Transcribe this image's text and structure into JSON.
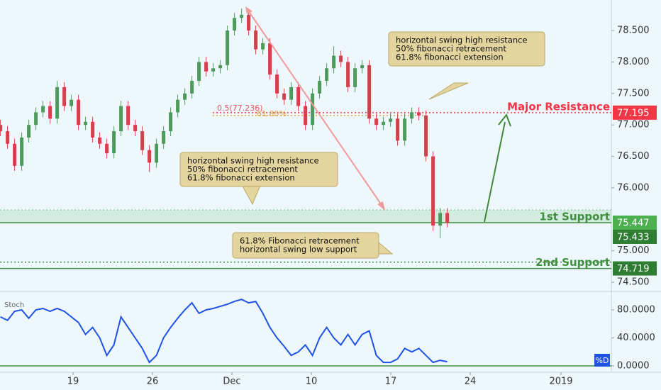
{
  "chart_data": [
    {
      "type": "candlestick",
      "up_color": "#4e9a5c",
      "down_color": "#d2424c",
      "x": [
        0.6,
        1.225,
        1.85,
        2.475,
        3.1,
        3.725,
        4.35,
        4.975,
        5.6,
        6.225,
        6.85,
        7.475,
        8.1,
        8.725,
        9.35,
        9.975,
        10.6,
        11.225,
        11.85,
        12.475,
        13.1,
        13.725,
        14.35,
        14.975,
        15.6,
        16.225,
        16.85,
        17.475,
        18.1,
        18.725,
        19.35,
        19.975,
        20.6,
        21.225,
        21.85,
        22.475,
        23.1,
        23.725,
        24.35,
        24.975,
        25.6,
        26.225,
        26.85,
        27.475,
        28.1,
        28.725,
        29.35,
        29.975,
        30.6,
        31.225,
        31.85,
        32.475,
        33.1,
        33.725,
        34.35,
        34.975,
        35.6,
        36.225,
        36.85,
        37.475,
        38.1,
        38.725,
        39.35,
        39.975
      ],
      "open": [
        77.0,
        76.9,
        76.7,
        76.35,
        76.8,
        77.0,
        77.2,
        77.3,
        77.1,
        77.6,
        77.3,
        77.4,
        77.0,
        77.05,
        76.8,
        76.7,
        76.55,
        76.9,
        77.3,
        77.0,
        76.9,
        76.6,
        76.4,
        76.7,
        76.9,
        77.2,
        77.4,
        77.5,
        77.7,
        78.0,
        77.85,
        77.9,
        77.95,
        78.5,
        78.7,
        78.75,
        78.5,
        78.2,
        78.3,
        77.8,
        77.5,
        77.4,
        77.6,
        77.3,
        77.0,
        77.5,
        77.7,
        77.9,
        78.1,
        78.0,
        77.6,
        77.9,
        77.95,
        77.1,
        77.0,
        77.05,
        77.1,
        76.75,
        77.1,
        77.2,
        77.15,
        76.5,
        75.4,
        75.6
      ],
      "high": [
        77.08,
        76.98,
        76.78,
        76.88,
        77.08,
        77.28,
        77.38,
        77.38,
        77.7,
        77.68,
        77.48,
        77.48,
        77.13,
        77.13,
        76.88,
        76.78,
        76.98,
        77.38,
        77.38,
        77.08,
        76.98,
        76.68,
        76.78,
        76.98,
        77.28,
        77.48,
        77.58,
        77.78,
        78.08,
        78.08,
        77.98,
        78.03,
        78.58,
        78.78,
        78.85,
        78.83,
        78.58,
        78.38,
        78.38,
        77.88,
        77.58,
        77.68,
        77.68,
        77.38,
        77.58,
        77.78,
        77.98,
        78.25,
        78.18,
        78.08,
        77.98,
        78.03,
        78.03,
        77.18,
        77.13,
        77.18,
        77.18,
        77.18,
        77.28,
        77.28,
        77.23,
        76.58,
        75.68,
        75.68
      ],
      "low": [
        76.82,
        76.62,
        76.27,
        76.27,
        76.72,
        76.92,
        77.12,
        77.02,
        77.02,
        77.22,
        77.22,
        76.92,
        76.92,
        76.72,
        76.62,
        76.47,
        76.47,
        76.82,
        76.92,
        76.82,
        76.52,
        76.25,
        76.32,
        76.62,
        76.82,
        77.12,
        77.32,
        77.42,
        77.62,
        77.77,
        77.77,
        77.82,
        77.87,
        78.42,
        78.62,
        78.42,
        78.12,
        78.12,
        77.72,
        77.42,
        77.32,
        77.32,
        77.22,
        76.92,
        76.92,
        77.42,
        77.62,
        77.82,
        77.92,
        77.52,
        77.52,
        77.82,
        77.02,
        76.92,
        76.92,
        76.97,
        76.67,
        76.67,
        77.02,
        77.07,
        76.42,
        75.32,
        75.2,
        75.37
      ],
      "close": [
        76.9,
        76.7,
        76.35,
        76.8,
        77.0,
        77.2,
        77.3,
        77.1,
        77.6,
        77.3,
        77.4,
        77.0,
        77.05,
        76.8,
        76.7,
        76.55,
        76.9,
        77.3,
        77.0,
        76.9,
        76.6,
        76.4,
        76.7,
        76.9,
        77.2,
        77.4,
        77.5,
        77.7,
        78.0,
        77.85,
        77.9,
        77.95,
        78.5,
        78.7,
        78.75,
        78.5,
        78.2,
        78.3,
        77.8,
        77.5,
        77.4,
        77.6,
        77.3,
        77.0,
        77.5,
        77.7,
        77.9,
        78.1,
        78.0,
        77.6,
        77.9,
        77.95,
        77.1,
        77.0,
        77.05,
        77.1,
        76.75,
        77.1,
        77.2,
        77.15,
        76.5,
        75.4,
        75.6,
        75.45
      ],
      "xlim": [
        0.5625,
        54.4375
      ],
      "ylim": [
        74.365,
        78.985
      ],
      "yticks": [
        {
          "value": 78.5,
          "label": "78.500"
        },
        {
          "value": 78,
          "label": "78.000"
        },
        {
          "value": 77.5,
          "label": "77.500"
        },
        {
          "value": 77,
          "label": "77.000"
        },
        {
          "value": 76.5,
          "label": "76.500"
        },
        {
          "value": 76,
          "label": "76.000"
        },
        {
          "value": 75,
          "label": "75.000"
        },
        {
          "value": 74.5,
          "label": "74.500"
        }
      ],
      "support_zone": [
        75.447,
        75.65
      ],
      "levels": [
        {
          "value": 77.195,
          "label": "Major Resistance",
          "color": "#f23645",
          "style": "dotted"
        },
        {
          "value": 75.447,
          "label": "1st Support",
          "color": "#3f8f3f",
          "style": "solid"
        },
        {
          "value": 74.719,
          "label": "2nd Support",
          "color": "#3f8f3f",
          "style": "solid"
        }
      ],
      "dotted_levels": [
        {
          "value": 74.82,
          "color": "#3f8f3f"
        },
        {
          "value": 77.15,
          "color": "#d9a441"
        }
      ],
      "fib_labels": [
        {
          "value": 77.236,
          "label": "0.5(77.236)",
          "color": "#e0565f"
        },
        {
          "value": 77.15,
          "label": "61.80%",
          "color": "#d9a441"
        }
      ],
      "price_tags": [
        {
          "value": 77.195,
          "color": "#f23645"
        },
        {
          "value": 75.447,
          "color": "#4caf50"
        },
        {
          "value": 75.433,
          "color": "#2e7d32"
        },
        {
          "value": 74.719,
          "color": "#2e7d32"
        }
      ],
      "annotations": [
        {
          "lines": [
            "horizontal swing high resistance",
            "50% fibonacci retracement",
            "61.8% fibonacci extension"
          ]
        },
        {
          "lines": [
            "horizontal swing high resistance",
            "50% fibonacci retracement",
            "61.8% fibonacci extension"
          ]
        },
        {
          "lines": [
            "61.8% Fibonacci retracement",
            "horizontal swing low support"
          ]
        }
      ]
    },
    {
      "type": "line",
      "title": "Stoch",
      "series": [
        {
          "name": "%D",
          "color": "#1e53e5",
          "values": [
            70,
            65,
            78,
            80,
            68,
            80,
            82,
            78,
            82,
            78,
            70,
            62,
            45,
            55,
            40,
            15,
            30,
            70,
            55,
            40,
            25,
            5,
            15,
            40,
            55,
            68,
            80,
            90,
            75,
            80,
            82,
            85,
            88,
            92,
            95,
            90,
            92,
            75,
            55,
            40,
            28,
            15,
            20,
            30,
            15,
            40,
            55,
            40,
            30,
            45,
            30,
            45,
            50,
            15,
            5,
            5,
            10,
            25,
            20,
            25,
            15,
            5,
            8,
            6
          ]
        }
      ],
      "xlim": [
        0.5625,
        54.4375
      ],
      "ylim": [
        -9.1,
        105.3
      ],
      "yticks": [
        {
          "value": 80,
          "label": "80.0000"
        },
        {
          "value": 40,
          "label": "40.0000"
        },
        {
          "value": 0,
          "label": "0.0000"
        }
      ],
      "levels": [
        {
          "value": 0,
          "color": "#3f8f3f"
        }
      ],
      "xticks": [
        {
          "value": 7,
          "label": "19"
        },
        {
          "value": 14,
          "label": "26"
        },
        {
          "value": 21,
          "label": "Dec"
        },
        {
          "value": 28,
          "label": "10"
        },
        {
          "value": 35,
          "label": "17"
        },
        {
          "value": 42,
          "label": "24"
        },
        {
          "value": 50,
          "label": "2019"
        }
      ]
    }
  ]
}
